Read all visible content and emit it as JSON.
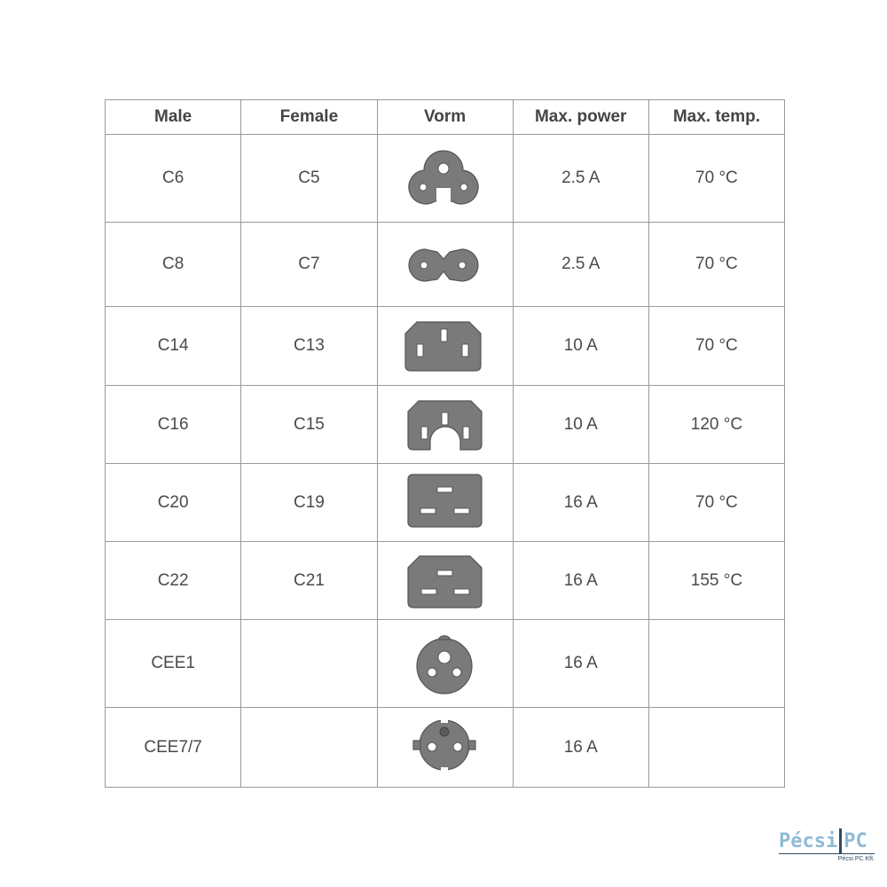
{
  "headers": [
    "Male",
    "Female",
    "Vorm",
    "Max. power",
    "Max. temp."
  ],
  "rows": [
    {
      "male": "C6",
      "female": "C5",
      "shape": "c5-clover-icon",
      "power": "2.5 A",
      "temp": "70 °C"
    },
    {
      "male": "C8",
      "female": "C7",
      "shape": "c7-figure8-icon",
      "power": "2.5 A",
      "temp": "70 °C"
    },
    {
      "male": "C14",
      "female": "C13",
      "shape": "c13-icon",
      "power": "10 A",
      "temp": "70 °C"
    },
    {
      "male": "C16",
      "female": "C15",
      "shape": "c15-icon",
      "power": "10 A",
      "temp": "120 °C"
    },
    {
      "male": "C20",
      "female": "C19",
      "shape": "c19-icon",
      "power": "16 A",
      "temp": "70 °C"
    },
    {
      "male": "C22",
      "female": "C21",
      "shape": "c21-icon",
      "power": "16 A",
      "temp": "155 °C"
    },
    {
      "male": "CEE1",
      "female": "",
      "shape": "cee1-icon",
      "power": "16 A",
      "temp": ""
    },
    {
      "male": "CEE7/7",
      "female": "",
      "shape": "cee77-schuko-icon",
      "power": "16 A",
      "temp": ""
    }
  ],
  "logo": {
    "text": "PécsiPC",
    "tagline": "Pécsi PC Kft."
  },
  "colors": {
    "shape_fill": "#7a7a7a",
    "grid": "#9a9a9a",
    "logo": "#8fbad6"
  }
}
